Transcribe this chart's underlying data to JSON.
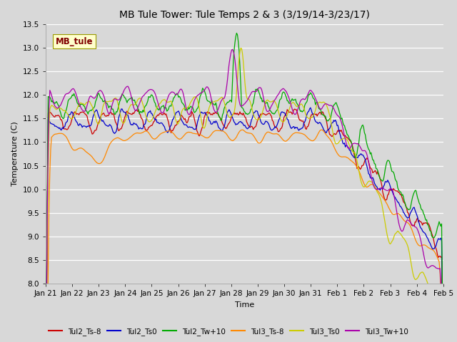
{
  "title": "MB Tule Tower: Tule Temps 2 & 3 (3/19/14-3/23/17)",
  "xlabel": "Time",
  "ylabel": "Temperature (C)",
  "ylim": [
    8.0,
    13.5
  ],
  "yticks": [
    8.0,
    8.5,
    9.0,
    9.5,
    10.0,
    10.5,
    11.0,
    11.5,
    12.0,
    12.5,
    13.0,
    13.5
  ],
  "bg_color": "#d8d8d8",
  "grid_color": "#f0f0f0",
  "inset_label": "MB_tule",
  "inset_label_bg": "#ffffcc",
  "inset_label_color": "#800000",
  "inset_label_edge": "#999900",
  "series_labels": [
    "Tul2_Ts-8",
    "Tul2_Ts0",
    "Tul2_Tw+10",
    "Tul3_Ts-8",
    "Tul3_Ts0",
    "Tul3_Tw+10"
  ],
  "series_colors": [
    "#cc0000",
    "#0000cc",
    "#00aa00",
    "#ff8800",
    "#cccc00",
    "#aa00aa"
  ],
  "xtick_labels": [
    "Jan 21",
    "Jan 22",
    "Jan 23",
    "Jan 24",
    "Jan 25",
    "Jan 26",
    "Jan 27",
    "Jan 28",
    "Jan 29",
    "Jan 30",
    "Jan 31",
    "Feb 1",
    "Feb 2",
    "Feb 3",
    "Feb 4",
    "Feb 5"
  ],
  "title_fontsize": 10,
  "axis_label_fontsize": 8,
  "tick_fontsize": 7.5,
  "legend_fontsize": 7.5,
  "lw": 0.9
}
